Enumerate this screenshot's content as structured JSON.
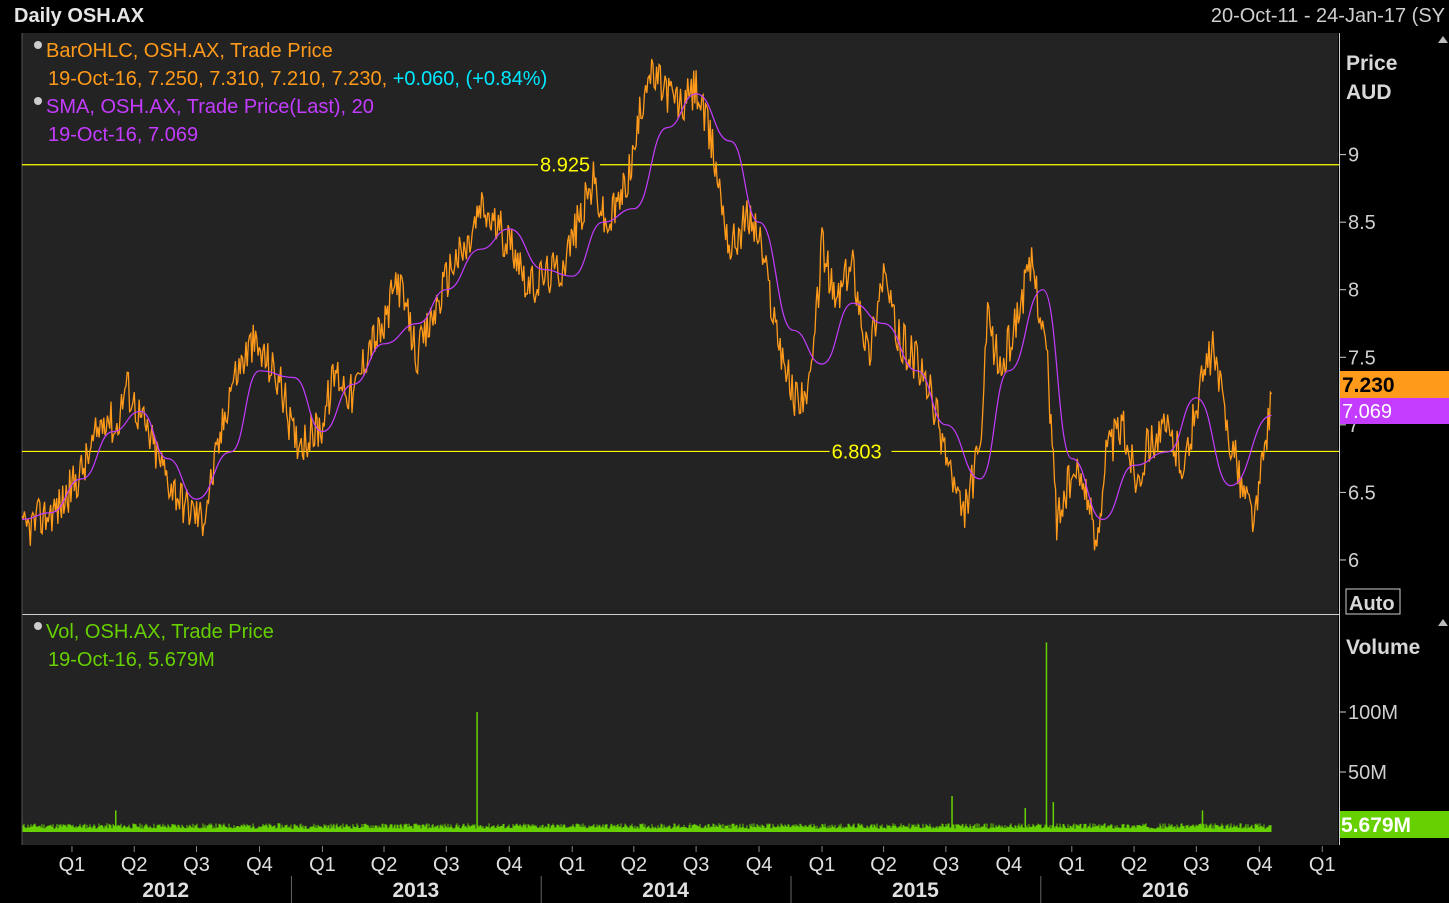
{
  "header": {
    "title": "Daily OSH.AX",
    "date_range": "20-Oct-11 - 24-Jan-17 (SY"
  },
  "colors": {
    "background": "#000000",
    "panel": "#232323",
    "price_series": "#ff9a1a",
    "sma_series": "#c43cff",
    "volume_series": "#66d000",
    "h_line": "#ffff00",
    "change_text": "#00e8ff"
  },
  "price_legend": {
    "ohlc_title": "BarOHLC, OSH.AX, Trade Price",
    "ohlc_date_values": "19-Oct-16, 7.250, 7.310, 7.210, 7.230,",
    "ohlc_change": "+0.060, (+0.84%)",
    "sma_title": "SMA, OSH.AX, Trade Price(Last),  20",
    "sma_date_value": "19-Oct-16, 7.069"
  },
  "volume_legend": {
    "title": "Vol, OSH.AX, Trade Price",
    "date_value": "19-Oct-16, 5.679M"
  },
  "price_axis": {
    "unit_label_1": "Price",
    "unit_label_2": "AUD",
    "auto_button": "Auto",
    "last_price_tag": "7.230",
    "last_sma_tag": "7.069"
  },
  "volume_axis": {
    "label": "Volume",
    "last_volume_tag": "5.679M"
  },
  "chart_data": [
    {
      "type": "line",
      "series": [
        {
          "name": "BarOHLC, OSH.AX, Trade Price",
          "x": [
            "2011-10-20",
            "2011-11-15",
            "2011-12-15",
            "2012-01-20",
            "2012-02-20",
            "2012-03-05",
            "2012-03-20",
            "2012-04-15",
            "2012-05-20",
            "2012-06-15",
            "2012-07-10",
            "2012-08-01",
            "2012-08-20",
            "2012-09-20",
            "2012-10-15",
            "2012-11-01",
            "2012-11-20",
            "2012-12-10",
            "2012-12-31",
            "2013-01-20",
            "2013-02-15",
            "2013-03-10",
            "2013-04-01",
            "2013-04-20",
            "2013-05-20",
            "2013-06-15",
            "2013-07-10",
            "2013-08-01",
            "2013-08-20",
            "2013-09-15",
            "2013-10-10",
            "2013-10-31",
            "2013-11-20",
            "2013-12-15",
            "2014-01-10",
            "2014-02-01",
            "2014-02-20",
            "2014-03-15",
            "2014-04-01",
            "2014-04-20",
            "2014-05-15",
            "2014-06-10",
            "2014-07-01",
            "2014-07-25",
            "2014-08-20",
            "2014-09-15",
            "2014-10-01",
            "2014-10-25",
            "2014-11-20",
            "2014-12-15",
            "2015-01-01",
            "2015-01-20",
            "2015-02-15",
            "2015-03-10",
            "2015-04-01",
            "2015-04-20",
            "2015-05-15",
            "2015-06-10",
            "2015-07-01",
            "2015-07-25",
            "2015-08-20",
            "2015-08-31",
            "2015-09-20",
            "2015-10-15",
            "2015-11-05",
            "2015-11-25",
            "2015-12-10",
            "2015-12-31",
            "2016-01-20",
            "2016-02-05",
            "2016-02-20",
            "2016-03-15",
            "2016-04-05",
            "2016-04-25",
            "2016-05-20",
            "2016-06-15",
            "2016-07-05",
            "2016-07-25",
            "2016-08-15",
            "2016-09-05",
            "2016-09-25",
            "2016-10-19"
          ],
          "values": [
            6.2,
            6.3,
            6.4,
            6.7,
            7.1,
            6.95,
            7.3,
            7.0,
            6.6,
            6.4,
            6.3,
            6.8,
            7.3,
            7.6,
            7.45,
            7.3,
            6.9,
            6.9,
            7.0,
            7.4,
            7.2,
            7.6,
            7.7,
            8.1,
            7.5,
            7.85,
            8.2,
            8.3,
            8.6,
            8.45,
            8.3,
            8.0,
            8.1,
            8.15,
            8.5,
            8.8,
            8.45,
            8.7,
            9.0,
            9.6,
            9.5,
            9.35,
            9.5,
            9.05,
            8.3,
            8.55,
            8.4,
            7.75,
            7.2,
            7.25,
            8.35,
            7.9,
            8.2,
            7.5,
            8.15,
            7.65,
            7.5,
            7.2,
            6.8,
            6.3,
            6.8,
            7.75,
            7.4,
            7.85,
            8.2,
            7.55,
            6.3,
            6.6,
            6.6,
            6.1,
            6.8,
            7.0,
            6.6,
            6.9,
            6.95,
            6.7,
            7.25,
            7.55,
            7.0,
            6.55,
            6.3,
            7.23
          ]
        },
        {
          "name": "SMA, OSH.AX, Trade Price(Last), 20",
          "x": [
            "2011-10-20",
            "2011-12-01",
            "2012-01-15",
            "2012-03-01",
            "2012-04-10",
            "2012-05-20",
            "2012-07-01",
            "2012-08-20",
            "2012-10-01",
            "2012-11-20",
            "2013-01-01",
            "2013-02-15",
            "2013-04-01",
            "2013-05-20",
            "2013-07-01",
            "2013-08-20",
            "2013-10-01",
            "2013-11-20",
            "2014-01-01",
            "2014-02-15",
            "2014-04-01",
            "2014-05-20",
            "2014-07-01",
            "2014-08-20",
            "2014-10-01",
            "2014-11-20",
            "2015-01-01",
            "2015-02-15",
            "2015-04-01",
            "2015-05-20",
            "2015-07-01",
            "2015-08-20",
            "2015-10-01",
            "2015-11-20",
            "2016-01-01",
            "2016-02-15",
            "2016-04-01",
            "2016-05-20",
            "2016-07-01",
            "2016-08-20",
            "2016-10-19"
          ],
          "values": [
            6.3,
            6.35,
            6.6,
            6.95,
            7.1,
            6.75,
            6.45,
            6.8,
            7.4,
            7.35,
            6.95,
            7.3,
            7.6,
            7.75,
            8.0,
            8.3,
            8.45,
            8.15,
            8.1,
            8.5,
            8.6,
            9.2,
            9.45,
            9.1,
            8.5,
            7.7,
            7.45,
            7.9,
            7.75,
            7.4,
            7.0,
            6.6,
            7.4,
            8.0,
            6.75,
            6.3,
            6.7,
            6.8,
            7.2,
            6.55,
            7.069
          ]
        }
      ],
      "horizontal_lines": [
        {
          "value": 8.925,
          "label": "8.925"
        },
        {
          "value": 6.803,
          "label": "6.803"
        }
      ],
      "ylim": [
        5.6,
        9.9
      ],
      "ylabel": "Price AUD",
      "yticks": [
        6,
        6.5,
        7,
        7.5,
        8,
        8.5,
        9
      ]
    },
    {
      "type": "bar",
      "series": [
        {
          "name": "Vol, OSH.AX, Trade Price",
          "baseline_volume_m": 5,
          "spikes": [
            {
              "x": "2012-03-05",
              "value": 18
            },
            {
              "x": "2013-08-15",
              "value": 100
            },
            {
              "x": "2015-07-10",
              "value": 30
            },
            {
              "x": "2015-10-25",
              "value": 20
            },
            {
              "x": "2015-11-25",
              "value": 158
            },
            {
              "x": "2015-12-05",
              "value": 25
            },
            {
              "x": "2016-07-10",
              "value": 18
            }
          ],
          "last_value": 5.679
        }
      ],
      "ylim": [
        0,
        160
      ],
      "ylabel": "Volume",
      "yticks": [
        {
          "value": 50,
          "label": "50M"
        },
        {
          "value": 100,
          "label": "100M"
        }
      ]
    }
  ],
  "x_axis": {
    "quarters": [
      "Q1",
      "Q2",
      "Q3",
      "Q4",
      "Q1",
      "Q2",
      "Q3",
      "Q4",
      "Q1",
      "Q2",
      "Q3",
      "Q4",
      "Q1",
      "Q2",
      "Q3",
      "Q4",
      "Q1",
      "Q2",
      "Q3",
      "Q4",
      "Q1"
    ],
    "years": [
      "2012",
      "2013",
      "2014",
      "2015",
      "2016"
    ]
  }
}
